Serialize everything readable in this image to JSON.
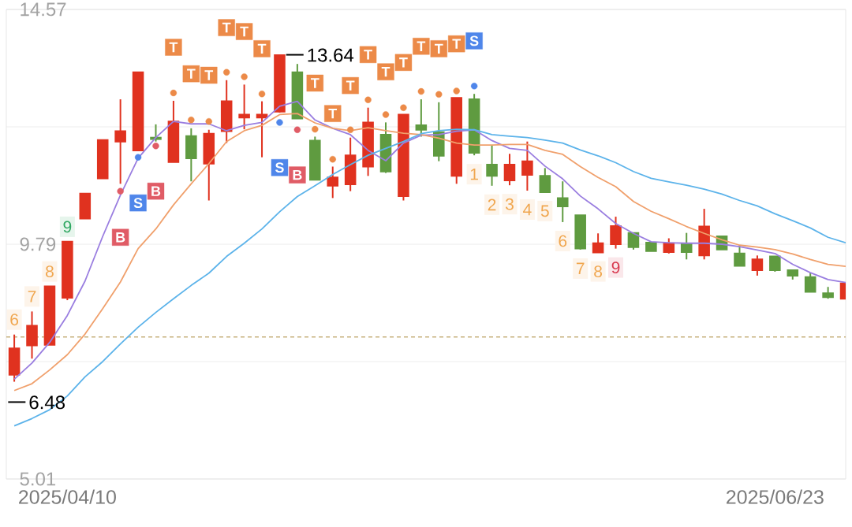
{
  "chart_data": {
    "type": "candlestick",
    "categories": [
      null,
      null,
      null,
      "2025/04/10",
      null,
      null,
      null,
      null,
      null,
      null,
      null,
      null,
      null,
      null,
      null,
      null,
      null,
      null,
      null,
      null,
      null,
      null,
      null,
      null,
      null,
      null,
      null,
      null,
      null,
      null,
      null,
      null,
      null,
      null,
      null,
      null,
      null,
      null,
      null,
      null,
      null,
      null,
      null,
      "2025/06/23",
      null,
      null,
      null,
      null
    ],
    "ohlc": [
      [
        7.13,
        7.95,
        6.99,
        7.67
      ],
      [
        7.73,
        8.42,
        7.46,
        8.13
      ],
      [
        7.74,
        8.93,
        7.74,
        8.93
      ],
      [
        8.7,
        9.84,
        8.65,
        9.84
      ],
      [
        10.31,
        10.82,
        10.31,
        10.82
      ],
      [
        11.13,
        11.91,
        11.13,
        11.91
      ],
      [
        11.88,
        12.74,
        11.02,
        12.09
      ],
      [
        11.7,
        13.29,
        11.7,
        13.29
      ],
      [
        11.96,
        12.23,
        11.88,
        11.93
      ],
      [
        11.46,
        12.71,
        11.46,
        12.29
      ],
      [
        11.99,
        12.15,
        11.07,
        11.54
      ],
      [
        11.43,
        12.12,
        10.68,
        12.04
      ],
      [
        12.09,
        13.13,
        11.85,
        12.7
      ],
      [
        12.37,
        13.04,
        12.13,
        12.43
      ],
      [
        12.37,
        12.7,
        11.56,
        12.43
      ],
      [
        12.49,
        13.64,
        12.47,
        13.64
      ],
      [
        13.29,
        13.46,
        12.35,
        12.35
      ],
      [
        11.9,
        11.98,
        11.1,
        11.1
      ],
      [
        10.98,
        11.37,
        10.73,
        11.15
      ],
      [
        11.01,
        11.96,
        10.87,
        11.6
      ],
      [
        11.37,
        12.57,
        11.18,
        12.27
      ],
      [
        12.02,
        12.27,
        11.24,
        11.27
      ],
      [
        10.77,
        12.43,
        10.68,
        12.43
      ],
      [
        12.21,
        12.74,
        11.98,
        12.12
      ],
      [
        12.07,
        12.68,
        11.48,
        11.59
      ],
      [
        11.18,
        12.77,
        11.02,
        12.77
      ],
      [
        12.74,
        12.85,
        11.6,
        11.65
      ],
      [
        11.41,
        11.81,
        10.98,
        11.18
      ],
      [
        11.09,
        11.63,
        10.99,
        11.41
      ],
      [
        11.2,
        11.88,
        10.88,
        11.48
      ],
      [
        11.18,
        11.34,
        10.85,
        10.85
      ],
      [
        10.73,
        11.07,
        10.24,
        10.56
      ],
      [
        10.38,
        10.38,
        9.68,
        9.7
      ],
      [
        9.62,
        10.01,
        9.62,
        9.81
      ],
      [
        9.79,
        10.35,
        9.7,
        10.16
      ],
      [
        10.02,
        10.02,
        9.68,
        9.73
      ],
      [
        9.82,
        9.82,
        9.65,
        9.65
      ],
      [
        9.63,
        9.91,
        9.6,
        9.81
      ],
      [
        9.79,
        10.02,
        9.48,
        9.63
      ],
      [
        9.56,
        10.51,
        9.48,
        10.15
      ],
      [
        9.95,
        9.95,
        9.68,
        9.68
      ],
      [
        9.6,
        9.77,
        9.35,
        9.35
      ],
      [
        9.26,
        9.56,
        9.15,
        9.48
      ],
      [
        9.54,
        9.54,
        9.23,
        9.26
      ],
      [
        9.26,
        9.26,
        9.07,
        9.15
      ],
      [
        9.12,
        9.21,
        8.82,
        8.82
      ],
      [
        8.79,
        8.92,
        8.68,
        8.71
      ],
      [
        8.68,
        8.99,
        8.68,
        8.99
      ]
    ],
    "colors": [
      "#e0321f",
      "#e0321f",
      "#e0321f",
      "#e0321f",
      "#e0321f",
      "#e0321f",
      "#e0321f",
      "#e0321f",
      "#5f9b40",
      "#e0321f",
      "#5f9b40",
      "#e0321f",
      "#e0321f",
      "#e0321f",
      "#e0321f",
      "#e0321f",
      "#5f9b40",
      "#5f9b40",
      "#e0321f",
      "#e0321f",
      "#e0321f",
      "#5f9b40",
      "#e0321f",
      "#5f9b40",
      "#5f9b40",
      "#e0321f",
      "#5f9b40",
      "#5f9b40",
      "#e0321f",
      "#e0321f",
      "#5f9b40",
      "#5f9b40",
      "#5f9b40",
      "#e0321f",
      "#e0321f",
      "#5f9b40",
      "#5f9b40",
      "#e0321f",
      "#5f9b40",
      "#e0321f",
      "#5f9b40",
      "#5f9b40",
      "#e0321f",
      "#5f9b40",
      "#5f9b40",
      "#5f9b40",
      "#5f9b40",
      "#e0321f"
    ],
    "ylim": [
      5.01,
      14.57
    ],
    "yticks": [
      5.01,
      {
        "value": 7.4,
        "label": null
      },
      9.79,
      {
        "value": 12.18,
        "label": null
      },
      14.57
    ],
    "grid": "y",
    "ref_lines": [
      {
        "axis": "y",
        "value": 7.9,
        "color": "#c8b27e",
        "line_style": "dashed"
      }
    ],
    "annotations": [
      "13.64",
      "6.48",
      "6",
      "7",
      "8",
      "9",
      "1",
      "2",
      "3",
      "4",
      "5",
      "6",
      "7",
      "8",
      "9"
    ],
    "series": [
      {
        "type": "line",
        "color": "#9a7ee0",
        "values": [
          7.04,
          7.37,
          7.79,
          8.34,
          9.04,
          9.95,
          10.79,
          11.54,
          11.96,
          12.29,
          12.24,
          12.24,
          12.1,
          12.21,
          12.27,
          12.6,
          12.7,
          12.32,
          12.15,
          12.02,
          11.7,
          11.49,
          11.85,
          12.01,
          12.02,
          12.09,
          12.12,
          11.9,
          11.74,
          11.7,
          11.38,
          11.12,
          10.77,
          10.51,
          10.21,
          10.01,
          9.84,
          9.82,
          9.81,
          9.81,
          9.79,
          9.74,
          9.67,
          9.6,
          9.38,
          9.21,
          9.07,
          9.01
        ]
      },
      {
        "type": "line",
        "color": "#f0a06c",
        "values": [
          6.81,
          6.95,
          7.23,
          7.54,
          7.96,
          8.48,
          9.02,
          9.7,
          10.1,
          10.59,
          11.02,
          11.43,
          11.88,
          12.1,
          12.21,
          12.43,
          12.45,
          12.26,
          12.15,
          12.1,
          12.16,
          12.1,
          12.05,
          12.02,
          11.95,
          11.85,
          11.81,
          11.81,
          11.82,
          11.82,
          11.7,
          11.62,
          11.37,
          11.15,
          10.96,
          10.66,
          10.46,
          10.31,
          10.15,
          10.01,
          9.88,
          9.77,
          9.73,
          9.68,
          9.59,
          9.48,
          9.38,
          9.34
        ]
      },
      {
        "type": "line",
        "color": "#5cb3ea",
        "values": [
          6.09,
          6.24,
          6.42,
          6.7,
          7.09,
          7.4,
          7.76,
          8.1,
          8.4,
          8.68,
          8.95,
          9.2,
          9.54,
          9.81,
          10.1,
          10.45,
          10.76,
          10.98,
          11.21,
          11.41,
          11.6,
          11.74,
          11.88,
          12.04,
          12.1,
          12.13,
          12.12,
          12.02,
          11.99,
          11.96,
          11.91,
          11.85,
          11.71,
          11.59,
          11.45,
          11.27,
          11.13,
          11.06,
          10.99,
          10.91,
          10.81,
          10.68,
          10.57,
          10.41,
          10.27,
          10.12,
          9.93,
          9.82
        ]
      },
      {
        "type": "scatter",
        "marker": "circle",
        "color": "#ec8a48",
        "values": [
          null,
          null,
          null,
          null,
          null,
          null,
          null,
          null,
          null,
          12.87,
          12.32,
          12.29,
          13.29,
          13.2,
          12.85,
          null,
          null,
          12.13,
          11.52,
          12.12,
          12.73,
          12.43,
          12.57,
          12.9,
          12.84,
          12.91,
          null,
          null,
          null,
          null,
          null,
          null,
          null,
          null,
          null,
          null,
          null,
          null,
          null,
          null,
          null,
          null,
          null,
          null,
          null,
          null,
          null,
          null
        ]
      },
      {
        "type": "scatter",
        "marker": "square",
        "color": "#ec8a48",
        "values": [
          null,
          null,
          null,
          null,
          null,
          null,
          null,
          null,
          null,
          13.8,
          13.26,
          13.23,
          14.2,
          14.12,
          13.77,
          null,
          null,
          13.07,
          12.45,
          13.02,
          13.65,
          13.3,
          13.49,
          13.82,
          13.77,
          13.87,
          null,
          null,
          null,
          null,
          null,
          null,
          null,
          null,
          null,
          null,
          null,
          null,
          null,
          null,
          null,
          null,
          null,
          null,
          null,
          null,
          null,
          null
        ],
        "value_labels": [
          null,
          null,
          null,
          null,
          null,
          null,
          null,
          null,
          null,
          "T",
          "T",
          "T",
          "T",
          "T",
          "T",
          null,
          null,
          "T",
          "T",
          "T",
          "T",
          "T",
          "T",
          "T",
          "T",
          "T",
          null,
          null,
          null,
          null,
          null,
          null,
          null,
          null,
          null,
          null,
          null,
          null,
          null,
          null,
          null,
          null,
          null,
          null,
          null,
          null,
          null,
          null
        ]
      },
      {
        "type": "scatter",
        "marker": "circle",
        "color": "#4f86ea",
        "values": [
          null,
          null,
          null,
          null,
          null,
          null,
          null,
          11.56,
          null,
          null,
          null,
          null,
          null,
          null,
          null,
          12.27,
          null,
          null,
          null,
          null,
          null,
          null,
          null,
          null,
          null,
          null,
          13.01,
          null,
          null,
          null,
          null,
          null,
          null,
          null,
          null,
          null,
          null,
          null,
          null,
          null,
          null,
          null,
          null,
          null,
          null,
          null,
          null,
          null
        ]
      },
      {
        "type": "scatter",
        "marker": "square",
        "color": "#4f86ea",
        "values": [
          null,
          null,
          null,
          null,
          null,
          null,
          null,
          10.63,
          null,
          null,
          null,
          null,
          null,
          null,
          null,
          11.35,
          null,
          null,
          null,
          null,
          null,
          null,
          null,
          null,
          null,
          null,
          13.93,
          null,
          null,
          null,
          null,
          null,
          null,
          null,
          null,
          null,
          null,
          null,
          null,
          null,
          null,
          null,
          null,
          null,
          null,
          null,
          null,
          null
        ],
        "value_labels": [
          null,
          null,
          null,
          null,
          null,
          null,
          null,
          "S",
          null,
          null,
          null,
          null,
          null,
          null,
          null,
          "S",
          null,
          null,
          null,
          null,
          null,
          null,
          null,
          null,
          null,
          null,
          "S",
          null,
          null,
          null,
          null,
          null,
          null,
          null,
          null,
          null,
          null,
          null,
          null,
          null,
          null,
          null,
          null,
          null,
          null,
          null,
          null,
          null
        ]
      },
      {
        "type": "scatter",
        "marker": "circle",
        "color": "#e05c66",
        "values": [
          null,
          null,
          null,
          null,
          null,
          null,
          10.87,
          null,
          11.79,
          null,
          null,
          null,
          null,
          null,
          null,
          null,
          12.12,
          null,
          null,
          null,
          null,
          null,
          null,
          null,
          null,
          null,
          null,
          null,
          null,
          null,
          null,
          null,
          null,
          null,
          null,
          null,
          null,
          null,
          null,
          null,
          null,
          null,
          null,
          null,
          null,
          null,
          null,
          null
        ]
      },
      {
        "type": "scatter",
        "marker": "square",
        "color": "#e05c66",
        "values": [
          null,
          null,
          null,
          null,
          null,
          null,
          9.93,
          null,
          10.87,
          null,
          null,
          null,
          null,
          null,
          null,
          null,
          11.2,
          null,
          null,
          null,
          null,
          null,
          null,
          null,
          null,
          null,
          null,
          null,
          null,
          null,
          null,
          null,
          null,
          null,
          null,
          null,
          null,
          null,
          null,
          null,
          null,
          null,
          null,
          null,
          null,
          null,
          null,
          null
        ],
        "value_labels": [
          null,
          null,
          null,
          null,
          null,
          null,
          "B",
          null,
          "B",
          null,
          null,
          null,
          null,
          null,
          null,
          null,
          "B",
          null,
          null,
          null,
          null,
          null,
          null,
          null,
          null,
          null,
          null,
          null,
          null,
          null,
          null,
          null,
          null,
          null,
          null,
          null,
          null,
          null,
          null,
          null,
          null,
          null,
          null,
          null,
          null,
          null,
          null,
          null
        ]
      }
    ]
  }
}
